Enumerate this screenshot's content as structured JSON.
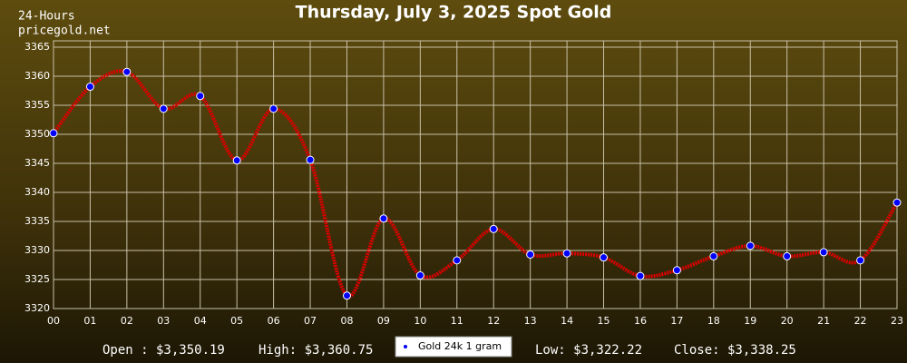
{
  "chart_data": {
    "type": "line",
    "title": "Thursday, July 3, 2025 Spot Gold",
    "corner_lines": [
      "24-Hours",
      "pricegold.net"
    ],
    "stats": [
      "Open : $3,350.19",
      "High: $3,360.75",
      "Low: $3,322.22",
      "Close: $3,338.25"
    ],
    "categories": [
      "00",
      "01",
      "02",
      "03",
      "04",
      "05",
      "06",
      "07",
      "08",
      "09",
      "10",
      "11",
      "12",
      "13",
      "14",
      "15",
      "16",
      "17",
      "18",
      "19",
      "20",
      "21",
      "22",
      "23"
    ],
    "series": [
      {
        "name": "Gold 24k 1 gram",
        "color": "#dd0000",
        "marker_color": "#0000ff",
        "values": [
          3350.19,
          3358.2,
          3360.75,
          3354.4,
          3356.6,
          3345.5,
          3354.4,
          3345.6,
          3322.22,
          3335.5,
          3325.7,
          3328.3,
          3333.7,
          3329.3,
          3329.5,
          3328.8,
          3325.6,
          3326.6,
          3329.0,
          3330.8,
          3329.0,
          3329.7,
          3328.3,
          3338.25
        ]
      }
    ],
    "ylim": [
      3320,
      3365
    ],
    "yticks": [
      3320,
      3325,
      3330,
      3335,
      3340,
      3345,
      3350,
      3355,
      3360,
      3365
    ],
    "grid": true
  }
}
